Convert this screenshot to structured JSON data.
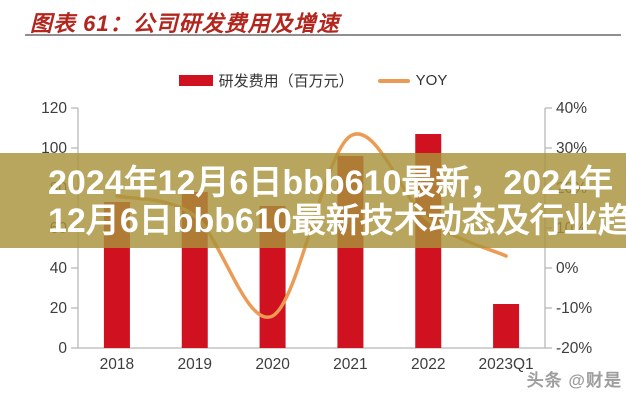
{
  "header": {
    "title": "图表 61：公司研发费用及增速",
    "title_color": "#b3261e"
  },
  "legend": {
    "items": [
      {
        "label": "研发费用（百万元）",
        "swatch": "bar",
        "color": "#cf1120"
      },
      {
        "label": "YOY",
        "swatch": "line",
        "color": "#ec9b55"
      }
    ]
  },
  "chart_data": {
    "type": "bar",
    "title": "公司研发费用及增速",
    "categories": [
      "2018",
      "2019",
      "2020",
      "2021",
      "2022",
      "2023Q1"
    ],
    "series": [
      {
        "name": "研发费用（百万元）",
        "type": "bar",
        "axis": "left",
        "color": "#cf1120",
        "values": [
          73,
          78,
          71,
          96,
          107,
          22
        ]
      },
      {
        "name": "YOY",
        "type": "line",
        "axis": "right",
        "color": "#ec9b55",
        "values": [
          18,
          13,
          -12,
          33,
          12,
          3
        ]
      }
    ],
    "left_axis": {
      "min": 0,
      "max": 120,
      "step": 20,
      "labels": [
        "0",
        "20",
        "40",
        "60",
        "80",
        "100",
        "120"
      ]
    },
    "right_axis": {
      "min": -20,
      "max": 40,
      "step": 10,
      "labels": [
        "-20%",
        "-10%",
        "0%",
        "10%",
        "20%",
        "30%",
        "40%"
      ]
    },
    "grid": false,
    "legend_position": "top",
    "axis_color": "#b8b8b8",
    "label_color": "#3d3d3d"
  },
  "overlay": {
    "band_color": "rgba(168,146,58,0.82)",
    "text_color": "#ffffff",
    "line1": "2024年12月6日bbb610最新，2024年",
    "line2": "12月6日bbb610最新技术动态及行业趋"
  },
  "credit": {
    "text": "头条 @财是"
  }
}
